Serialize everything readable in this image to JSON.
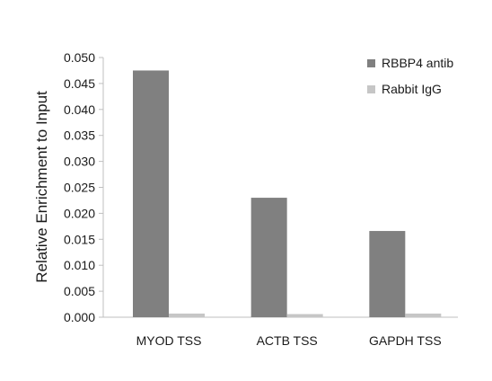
{
  "chart_data": {
    "type": "bar",
    "title": "",
    "xlabel": "",
    "ylabel": "Relative Enrichment to Input",
    "ylim": [
      0,
      0.05
    ],
    "yticks": [
      "0.000",
      "0.005",
      "0.010",
      "0.015",
      "0.020",
      "0.025",
      "0.030",
      "0.035",
      "0.040",
      "0.045",
      "0.050"
    ],
    "categories": [
      "MYOD TSS",
      "ACTB TSS",
      "GAPDH TSS"
    ],
    "series": [
      {
        "name": "RBBP4 antib",
        "color": "#808080",
        "values": [
          0.0475,
          0.023,
          0.0166
        ]
      },
      {
        "name": "Rabbit IgG",
        "color": "#c6c6c6",
        "values": [
          0.0007,
          0.0006,
          0.0007
        ]
      }
    ],
    "grid": false,
    "legend_position": "top-right"
  }
}
